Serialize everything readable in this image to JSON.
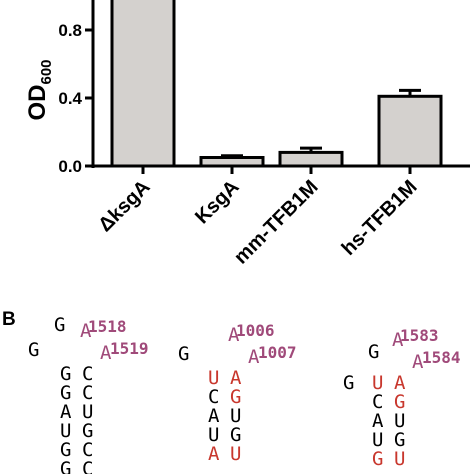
{
  "colors": {
    "bar_fill": "#d4d1ce",
    "ink": "#000000",
    "highlight": "#a04a7a",
    "red": "#c8372d"
  },
  "chart_data": {
    "type": "bar",
    "ylabel": "OD",
    "ylabel_sub": "600",
    "ylim": [
      0,
      1.0
    ],
    "yticks": [
      "0.0",
      "0.4",
      "0.8"
    ],
    "categories": [
      "ΔksgA",
      "KsgA",
      "mm-TFB1M",
      "hs-TFB1M"
    ],
    "values": [
      1.0,
      0.05,
      0.08,
      0.41
    ],
    "errors": [
      0.0,
      0.01,
      0.025,
      0.035
    ]
  },
  "panel_b": {
    "label": "B",
    "structures": [
      {
        "loop_g1": "G",
        "loop_g2": "G",
        "loop_a1": "A",
        "loop_a2": "A",
        "num1": "1518",
        "num2": "1519",
        "left": [
          "G",
          "G",
          "A",
          "U",
          "G",
          "G"
        ],
        "right": [
          "C",
          "C",
          "U",
          "G",
          "C",
          "C"
        ]
      },
      {
        "loop_g1": "G",
        "loop_a1": "A",
        "loop_a2": "A",
        "num1": "1006",
        "num2": "1007",
        "left": [
          "U",
          "C",
          "A",
          "U",
          "A"
        ],
        "right": [
          "A",
          "G",
          "U",
          "G",
          "U"
        ]
      },
      {
        "loop_g1": "G",
        "loop_g2": "G",
        "loop_a1": "A",
        "loop_a2": "A",
        "num1": "1583",
        "num2": "1584",
        "left": [
          "U",
          "C",
          "A",
          "U",
          "G"
        ],
        "right": [
          "A",
          "G",
          "U",
          "G",
          "U"
        ]
      }
    ]
  }
}
